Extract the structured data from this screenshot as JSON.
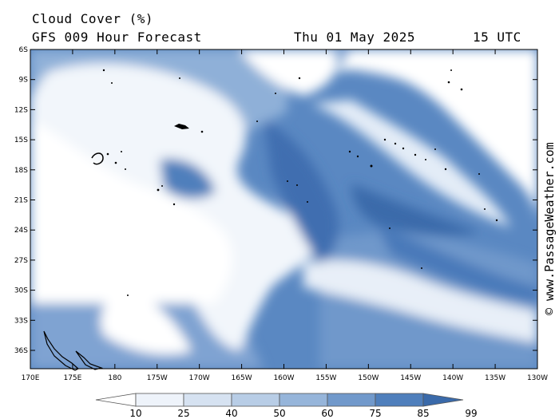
{
  "header": {
    "title": "Cloud Cover (%)",
    "model": "GFS 009 Hour Forecast",
    "date": "Thu 01 May 2025",
    "time": "15 UTC"
  },
  "map": {
    "lat_labels": [
      "6S",
      "9S",
      "12S",
      "15S",
      "18S",
      "21S",
      "24S",
      "27S",
      "30S",
      "33S",
      "36S"
    ],
    "lon_labels": [
      "170E",
      "175E",
      "180",
      "175W",
      "170W",
      "165W",
      "160W",
      "155W",
      "150W",
      "145W",
      "140W",
      "135W",
      "130W"
    ],
    "credit": "© www.PassageWeather.com"
  },
  "legend": {
    "labels": [
      "10",
      "25",
      "40",
      "50",
      "60",
      "75",
      "85",
      "99"
    ],
    "colors": [
      "#ffffff",
      "#eef3fa",
      "#d6e2f1",
      "#b8cde6",
      "#96b5da",
      "#7199cb",
      "#4f7fbc",
      "#3a6aaa"
    ]
  }
}
